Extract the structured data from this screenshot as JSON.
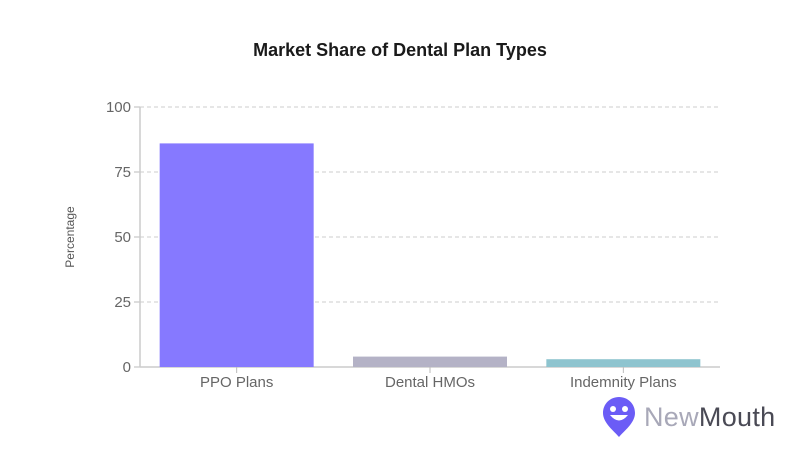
{
  "chart_data": {
    "type": "bar",
    "title": "Market Share of Dental Plan Types",
    "xlabel": "",
    "ylabel": "Percentage",
    "categories": [
      "PPO Plans",
      "Dental HMOs",
      "Indemnity Plans"
    ],
    "values": [
      86,
      4,
      3
    ],
    "colors": [
      "#8679ff",
      "#b4b2c6",
      "#8ec4cf"
    ],
    "ylim": [
      0,
      100
    ],
    "yticks": [
      0,
      25,
      50,
      75,
      100
    ],
    "grid": true,
    "legend": "none"
  },
  "brand": {
    "logo_part1": "New",
    "logo_part2": "Mouth",
    "accent": "#6b5cf6"
  }
}
